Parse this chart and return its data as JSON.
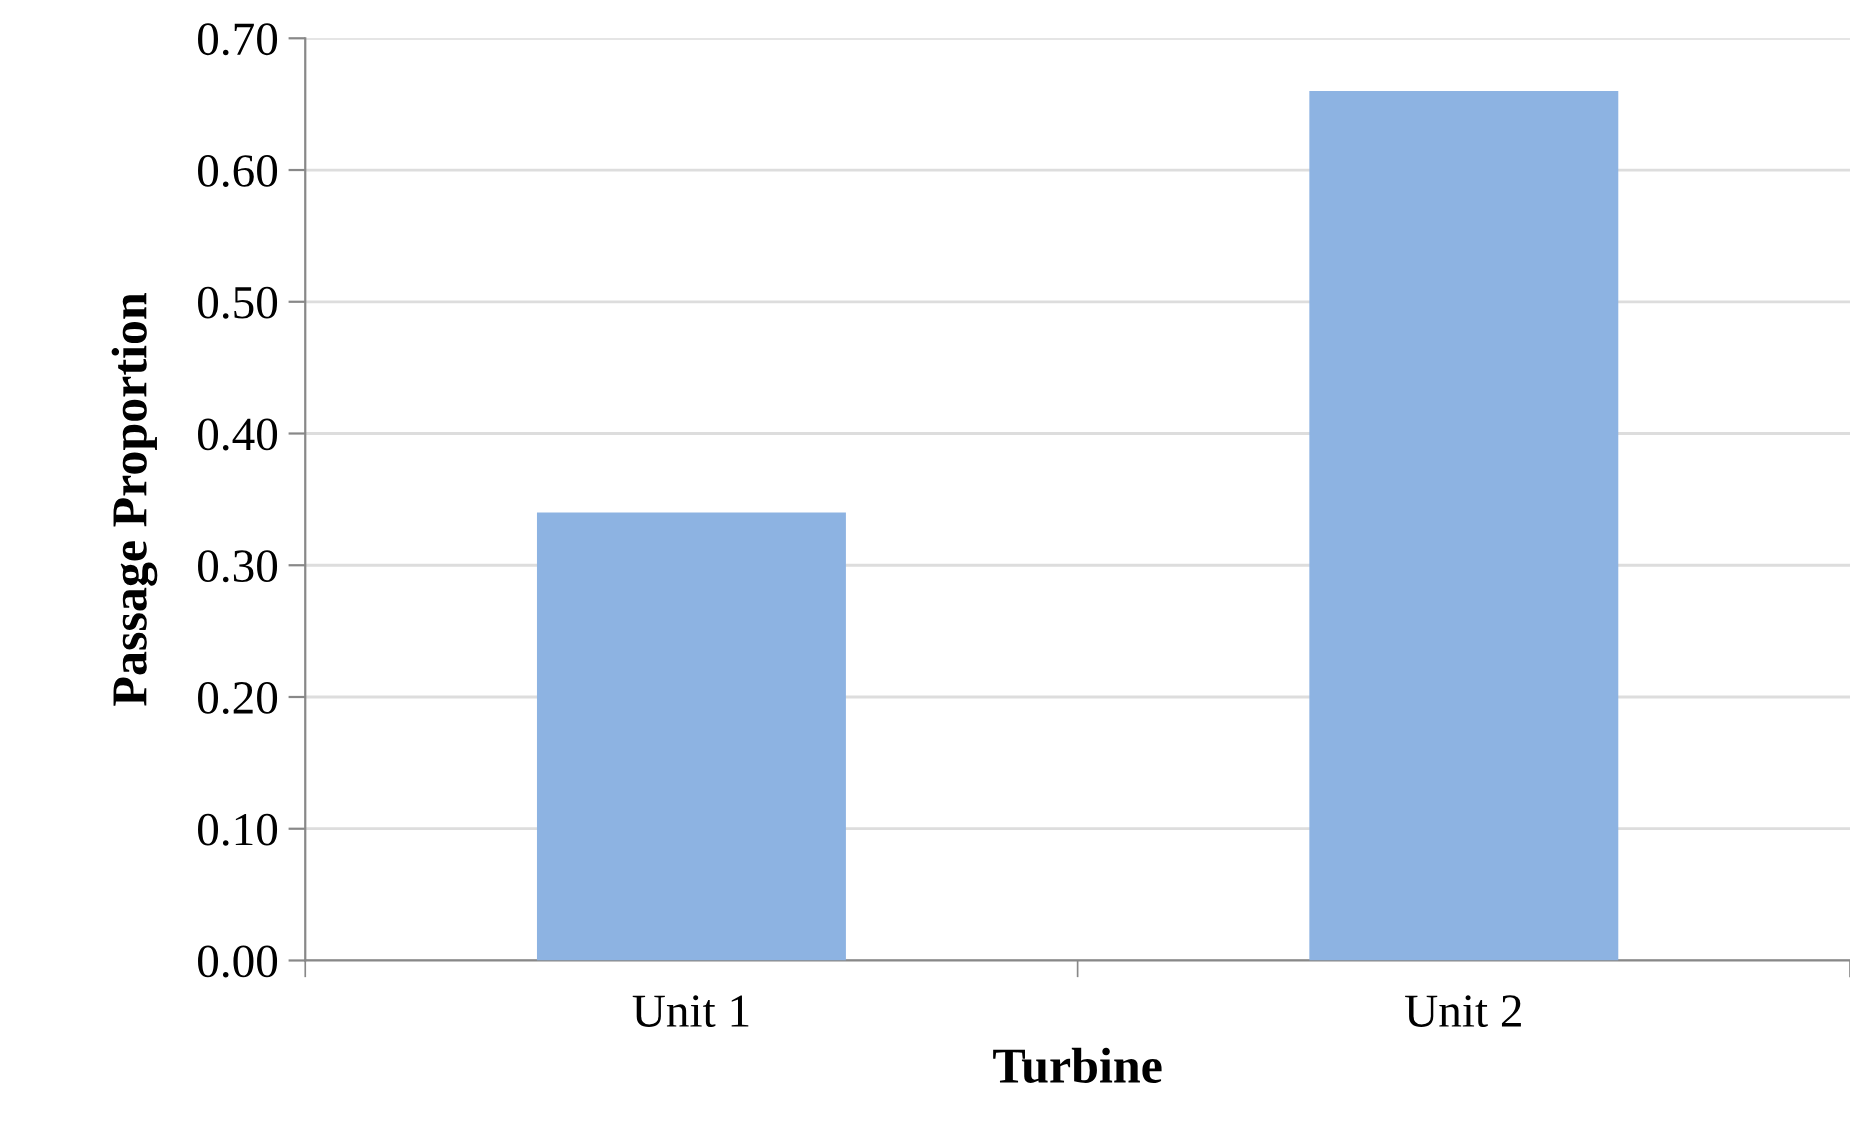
{
  "chart_data": {
    "type": "bar",
    "xlabel": "Turbine",
    "ylabel": "Passage Proportion",
    "categories": [
      "Unit 1",
      "Unit 2"
    ],
    "values": [
      0.34,
      0.66
    ],
    "color": "#8db3e2",
    "ylim": [
      0,
      0.7
    ],
    "yticks": [
      {
        "value": 0,
        "label": "0.00"
      },
      {
        "value": 0.1,
        "label": "0.10"
      },
      {
        "value": 0.2,
        "label": "0.20"
      },
      {
        "value": 0.3,
        "label": "0.30"
      },
      {
        "value": 0.4,
        "label": "0.40"
      },
      {
        "value": 0.5,
        "label": "0.50"
      },
      {
        "value": 0.6,
        "label": "0.60"
      },
      {
        "value": 0.7,
        "label": "0.70"
      }
    ],
    "grid": "y",
    "legend": false
  }
}
